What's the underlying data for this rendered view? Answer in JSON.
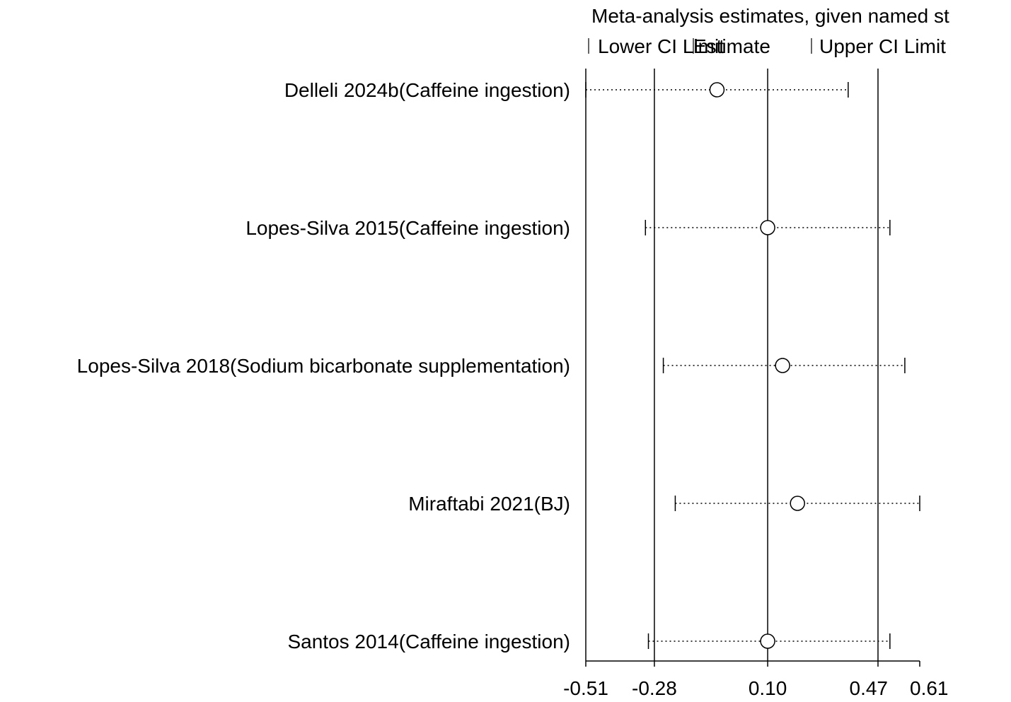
{
  "chart_data": {
    "type": "forest",
    "title": "Meta-analysis estimates, given named st",
    "legend": {
      "placement": "top",
      "entries": [
        "Lower CI Limit",
        "Estimate",
        "Upper CI Limit"
      ]
    },
    "x_ticks": [
      {
        "value": -0.51,
        "label": "-0.51"
      },
      {
        "value": -0.28,
        "label": "-0.28"
      },
      {
        "value": 0.1,
        "label": "0.10"
      },
      {
        "value": 0.47,
        "label": "0.47"
      },
      {
        "value": 0.61,
        "label": "0.61"
      }
    ],
    "xlim": [
      -0.51,
      0.61
    ],
    "reference_lines": [
      -0.28,
      0.1,
      0.47
    ],
    "studies": [
      {
        "label": "Delleli 2024b(Caffeine ingestion)",
        "estimate": -0.07,
        "lower": -0.51,
        "upper": 0.37
      },
      {
        "label": "Lopes-Silva 2015(Caffeine ingestion)",
        "estimate": 0.1,
        "lower": -0.31,
        "upper": 0.51
      },
      {
        "label": "Lopes-Silva 2018(Sodium bicarbonate supplementation)",
        "estimate": 0.15,
        "lower": -0.25,
        "upper": 0.56
      },
      {
        "label": "Miraftabi 2021(BJ)",
        "estimate": 0.2,
        "lower": -0.21,
        "upper": 0.61
      },
      {
        "label": "Santos 2014(Caffeine ingestion)",
        "estimate": 0.1,
        "lower": -0.3,
        "upper": 0.51
      }
    ],
    "grid": false
  }
}
